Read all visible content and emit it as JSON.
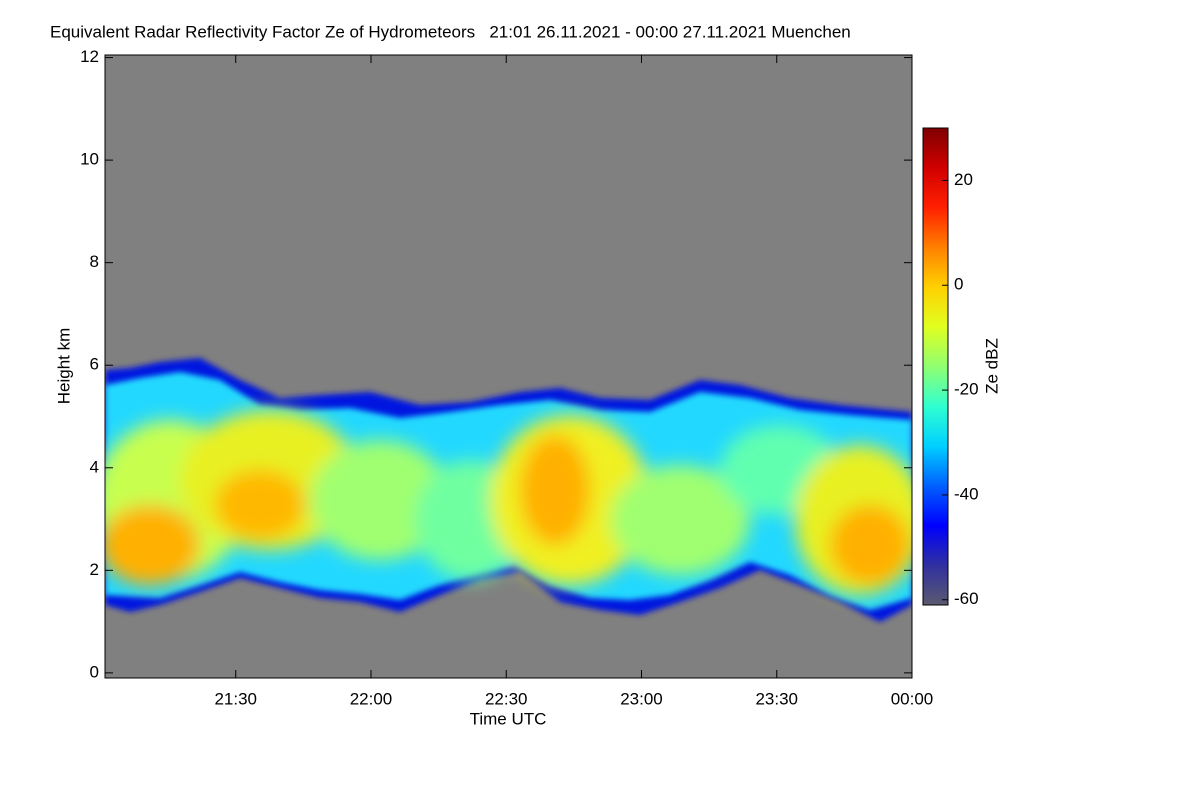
{
  "chart_data": {
    "type": "heatmap",
    "title": "Equivalent Radar Reflectivity Factor Ze of Hydrometeors   21:01 26.11.2021 - 00:00 27.11.2021 Muenchen",
    "xlabel": "Time UTC",
    "ylabel": "Height km",
    "colorbar_label": "Ze dBZ",
    "background_color": "#808080",
    "xlim": [
      21.0167,
      24
    ],
    "xticks": [
      {
        "value": 21.5,
        "label": "21:30"
      },
      {
        "value": 22,
        "label": "22:00"
      },
      {
        "value": 22.5,
        "label": "22:30"
      },
      {
        "value": 23,
        "label": "23:00"
      },
      {
        "value": 23.5,
        "label": "23:30"
      },
      {
        "value": 24,
        "label": "00:00"
      }
    ],
    "ylim": [
      -0.1,
      12.05
    ],
    "yticks": [
      0,
      2,
      4,
      6,
      8,
      10,
      12
    ],
    "clim": [
      -61,
      30
    ],
    "cticks": [
      -60,
      -40,
      -20,
      0,
      20
    ],
    "colormap": [
      "#5a5a70",
      "#3030a0",
      "#0000ff",
      "#0060ff",
      "#00d0ff",
      "#30ffd0",
      "#90ff70",
      "#e0ff20",
      "#ffd000",
      "#ff8000",
      "#ff2000",
      "#d00000",
      "#800000"
    ]
  }
}
